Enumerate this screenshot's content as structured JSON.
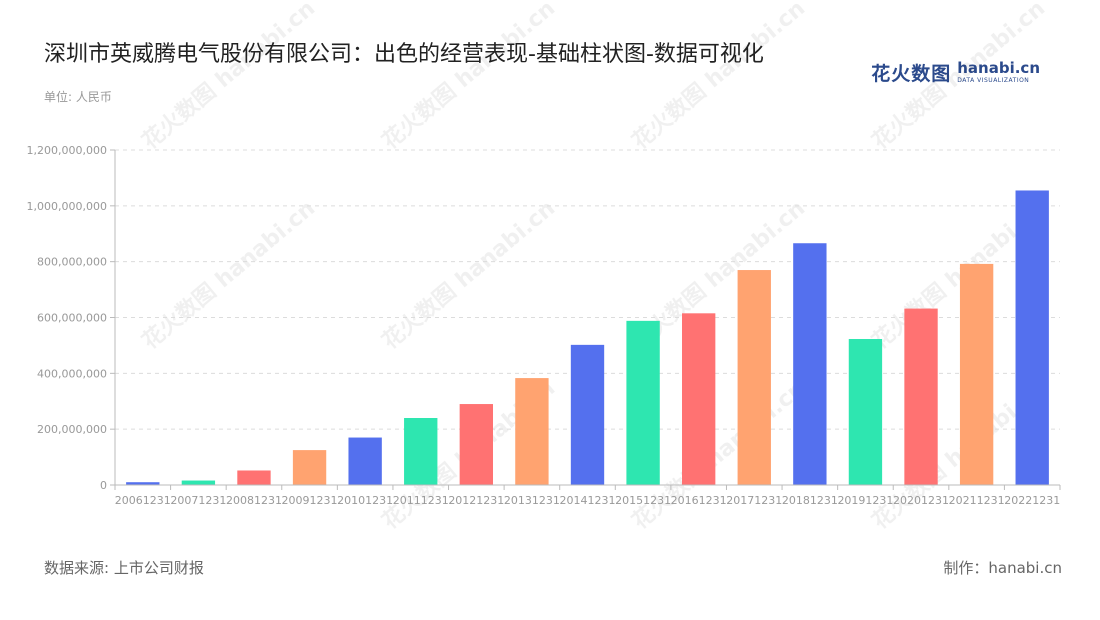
{
  "header": {
    "title": "深圳市英威腾电气股份有限公司：出色的经营表现-基础柱状图-数据可视化",
    "unit": "单位: 人民币"
  },
  "logo": {
    "cn_text": "花火数图",
    "en_text": "hanabi.cn",
    "en_sub": "DATA VISUALIZATION"
  },
  "footer": {
    "source": "数据来源: 上市公司财报",
    "credit": "制作：hanabi.cn"
  },
  "chart_data": {
    "type": "bar",
    "categories": [
      "20061231",
      "20071231",
      "20081231",
      "20091231",
      "20101231",
      "20111231",
      "20121231",
      "20131231",
      "20141231",
      "20151231",
      "20161231",
      "20171231",
      "20181231",
      "20191231",
      "20201231",
      "20211231",
      "20221231"
    ],
    "values": [
      10000000,
      16000000,
      52000000,
      125000000,
      170000000,
      240000000,
      290000000,
      383000000,
      502000000,
      588000000,
      615000000,
      770000000,
      866000000,
      523000000,
      632000000,
      792000000,
      1055000000
    ],
    "ylim": [
      0,
      1200000000
    ],
    "yticks": [
      0,
      200000000,
      400000000,
      600000000,
      800000000,
      1000000000,
      1200000000
    ],
    "ytick_labels": [
      "0",
      "200,000,000",
      "400,000,000",
      "600,000,000",
      "800,000,000",
      "1,000,000,000",
      "1,200,000,000"
    ],
    "colors": [
      "#5470ee",
      "#2ee6b0",
      "#ff7272",
      "#ffa370"
    ],
    "grid": true,
    "legend": "none"
  }
}
